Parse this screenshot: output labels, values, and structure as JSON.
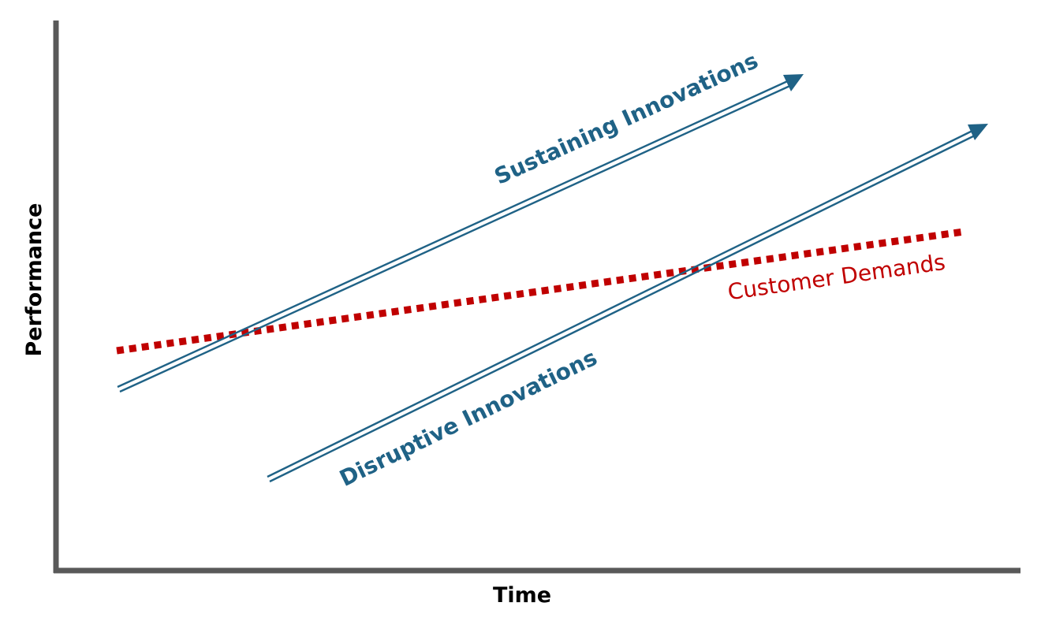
{
  "axes": {
    "x_label": "Time",
    "y_label": "Performance",
    "axis_color": "#595959"
  },
  "lines": {
    "sustaining": {
      "label": "Sustaining Innovations",
      "color": "#1F6286",
      "style": "double-line-arrow"
    },
    "disruptive": {
      "label": "Disruptive Innovations",
      "color": "#1F6286",
      "style": "double-line-arrow"
    },
    "customer": {
      "label": "Customer Demands",
      "color": "#C00000",
      "style": "dotted"
    }
  }
}
